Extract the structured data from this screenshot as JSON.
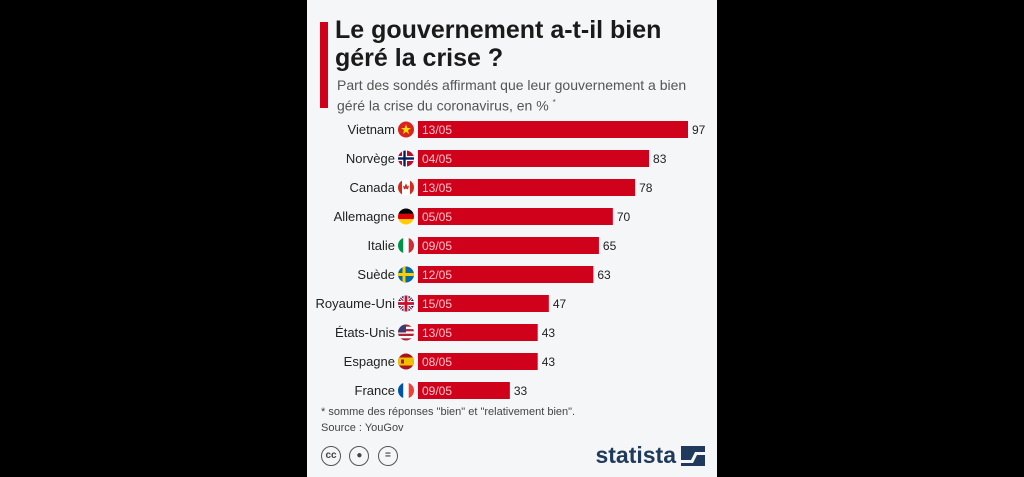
{
  "header": {
    "title": "Le gouvernement a-t-il bien géré la crise ?",
    "subtitle": "Part des sondés affirmant que leur gouvernement a bien géré la crise du coronavirus, en %",
    "subtitle_mark": "*"
  },
  "footer": {
    "footnote": "* somme des réponses \"bien\" et \"relativement bien\".",
    "source": "Source : YouGov",
    "brand": "statista",
    "license_icons": [
      "cc-icon",
      "by-icon",
      "nd-icon"
    ]
  },
  "colors": {
    "bar": "#d0021b",
    "accent": "#d0021b"
  },
  "chart_data": {
    "type": "bar",
    "orientation": "horizontal",
    "categories": [
      "Vietnam",
      "Norvège",
      "Canada",
      "Allemagne",
      "Italie",
      "Suède",
      "Royaume-Uni",
      "États-Unis",
      "Espagne",
      "France"
    ],
    "values": [
      97,
      83,
      78,
      70,
      65,
      63,
      47,
      43,
      43,
      33
    ],
    "bar_labels": [
      "13/05",
      "04/05",
      "13/05",
      "05/05",
      "09/05",
      "12/05",
      "15/05",
      "13/05",
      "08/05",
      "09/05"
    ],
    "flag_icons": [
      "vietnam-flag-icon",
      "norway-flag-icon",
      "canada-flag-icon",
      "germany-flag-icon",
      "italy-flag-icon",
      "sweden-flag-icon",
      "uk-flag-icon",
      "usa-flag-icon",
      "spain-flag-icon",
      "france-flag-icon"
    ],
    "xlim": [
      0,
      100
    ]
  }
}
